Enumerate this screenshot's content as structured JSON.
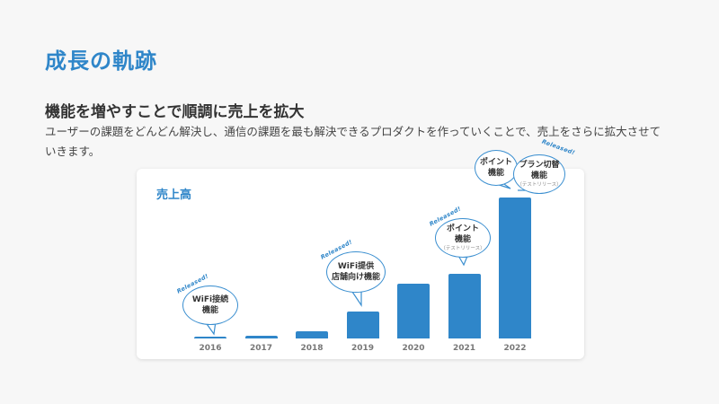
{
  "header": {
    "title": "成長の軌跡",
    "subtitle": "機能を増やすことで順調に売上を拡大",
    "description": "ユーザーの課題をどんどん解決し、通信の課題を最も解決できるプロダクトを作っていくことで、売上をさらに拡大させていきます。"
  },
  "chart_data": {
    "type": "bar",
    "title": "売上高",
    "categories": [
      "2016",
      "2017",
      "2018",
      "2019",
      "2020",
      "2021",
      "2022"
    ],
    "values": [
      1,
      2,
      5,
      19,
      38,
      45,
      98
    ],
    "ylim": [
      0,
      100
    ],
    "grid": false,
    "color": "#2f86c9",
    "annotations": [
      {
        "year": "2016",
        "tag": "Released!",
        "line1": "WiFi接続",
        "line2": "機能",
        "line3": ""
      },
      {
        "year": "2019",
        "tag": "Released!",
        "line1": "WiFi提供",
        "line2": "店舗向け機能",
        "line3": ""
      },
      {
        "year": "2021",
        "tag": "Released!",
        "line1": "ポイント",
        "line2": "機能",
        "line3": "（テストリリース）"
      },
      {
        "year": "2022",
        "tag": "",
        "line1": "ポイント",
        "line2": "機能",
        "line3": ""
      },
      {
        "year": "2022",
        "tag": "Released!",
        "line1": "プラン切替",
        "line2": "機能",
        "line3": "（テストリリース）"
      }
    ]
  }
}
